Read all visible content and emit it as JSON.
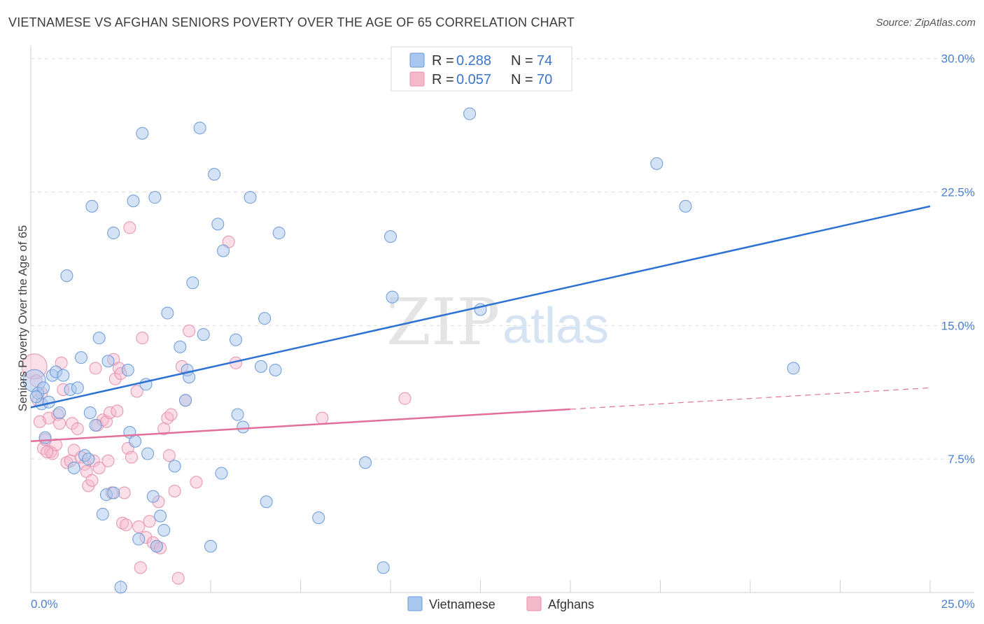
{
  "header": {
    "title": "VIETNAMESE VS AFGHAN SENIORS POVERTY OVER THE AGE OF 65 CORRELATION CHART",
    "source": "Source: ZipAtlas.com"
  },
  "legend": {
    "series": [
      {
        "r_label": "R =",
        "r_value": "0.288",
        "n_label": "N =",
        "n_value": "74"
      },
      {
        "r_label": "R =",
        "r_value": "0.057",
        "n_label": "N =",
        "n_value": "70"
      }
    ]
  },
  "bottom_legend": [
    "Vietnamese",
    "Afghans"
  ],
  "watermark": {
    "zip": "ZIP",
    "atlas": "atlas"
  },
  "colors": {
    "vietnamese_fill": "#a9c6ee",
    "vietnamese_stroke": "#6a9ad8",
    "vietnamese_line": "#2d72d2",
    "afghans_fill": "#f6b8cb",
    "afghans_stroke": "#e591ad",
    "afghans_line": "#e0709a"
  },
  "chart_data": {
    "type": "scatter",
    "title": "VIETNAMESE VS AFGHAN SENIORS POVERTY OVER THE AGE OF 65 CORRELATION CHART",
    "xlabel": "",
    "ylabel": "Seniors Poverty Over the Age of 65",
    "xlim": [
      0,
      25
    ],
    "ylim": [
      0,
      30.5
    ],
    "x_ticks_labeled": [
      "0.0%",
      "25.0%"
    ],
    "y_ticks": [
      7.5,
      15.0,
      22.5,
      30.0
    ],
    "y_tick_labels": [
      "7.5%",
      "15.0%",
      "22.5%",
      "30.0%"
    ],
    "grid": true,
    "series": [
      {
        "name": "Vietnamese",
        "R": 0.288,
        "N": 74,
        "trend": {
          "x": [
            0,
            25
          ],
          "y": [
            10.4,
            21.7
          ],
          "style": "solid"
        },
        "points": [
          [
            0.1,
            11.9
          ],
          [
            0.2,
            11.2
          ],
          [
            0.3,
            10.6
          ],
          [
            0.35,
            11.5
          ],
          [
            0.4,
            8.7
          ],
          [
            0.5,
            10.7
          ],
          [
            0.6,
            12.2
          ],
          [
            0.7,
            12.4
          ],
          [
            0.8,
            10.1
          ],
          [
            0.9,
            12.2
          ],
          [
            1.0,
            17.8
          ],
          [
            1.1,
            11.4
          ],
          [
            1.2,
            7.0
          ],
          [
            1.3,
            11.5
          ],
          [
            1.4,
            13.2
          ],
          [
            1.5,
            7.7
          ],
          [
            1.6,
            7.5
          ],
          [
            1.65,
            10.1
          ],
          [
            1.7,
            21.7
          ],
          [
            1.8,
            9.4
          ],
          [
            1.9,
            14.3
          ],
          [
            2.0,
            4.4
          ],
          [
            2.1,
            5.5
          ],
          [
            2.15,
            13.0
          ],
          [
            2.3,
            5.6
          ],
          [
            2.3,
            20.2
          ],
          [
            2.5,
            0.3
          ],
          [
            2.7,
            12.5
          ],
          [
            2.75,
            9.0
          ],
          [
            2.85,
            22.0
          ],
          [
            2.9,
            8.5
          ],
          [
            3.0,
            3.0
          ],
          [
            3.1,
            25.8
          ],
          [
            3.2,
            11.7
          ],
          [
            3.25,
            7.8
          ],
          [
            3.4,
            5.4
          ],
          [
            3.45,
            22.2
          ],
          [
            3.5,
            2.6
          ],
          [
            3.6,
            4.3
          ],
          [
            3.7,
            3.5
          ],
          [
            3.8,
            15.7
          ],
          [
            4.0,
            7.1
          ],
          [
            4.15,
            13.8
          ],
          [
            4.3,
            10.8
          ],
          [
            4.35,
            12.5
          ],
          [
            4.4,
            12.1
          ],
          [
            4.5,
            17.4
          ],
          [
            4.7,
            26.1
          ],
          [
            4.8,
            14.5
          ],
          [
            5.0,
            2.6
          ],
          [
            5.1,
            23.5
          ],
          [
            5.2,
            20.7
          ],
          [
            5.3,
            6.7
          ],
          [
            5.35,
            19.2
          ],
          [
            5.7,
            14.2
          ],
          [
            5.75,
            10.0
          ],
          [
            5.9,
            9.3
          ],
          [
            6.1,
            22.2
          ],
          [
            6.4,
            12.7
          ],
          [
            6.5,
            15.4
          ],
          [
            6.55,
            5.1
          ],
          [
            6.8,
            12.5
          ],
          [
            6.9,
            20.2
          ],
          [
            8.0,
            4.2
          ],
          [
            9.3,
            7.3
          ],
          [
            9.8,
            1.4
          ],
          [
            10.0,
            20.0
          ],
          [
            10.05,
            16.6
          ],
          [
            12.2,
            26.9
          ],
          [
            12.5,
            15.9
          ],
          [
            17.4,
            24.1
          ],
          [
            18.2,
            21.7
          ],
          [
            21.2,
            12.6
          ],
          [
            0.15,
            11.0
          ]
        ]
      },
      {
        "name": "Afghans",
        "R": 0.057,
        "N": 70,
        "trend": {
          "x": [
            0,
            15
          ],
          "y": [
            8.5,
            10.3
          ],
          "dashed_to": {
            "x": 25,
            "y": 11.5
          },
          "style": "solid-then-dashed"
        },
        "points": [
          [
            0.1,
            12.7
          ],
          [
            0.2,
            10.8
          ],
          [
            0.3,
            11.2
          ],
          [
            0.35,
            8.1
          ],
          [
            0.4,
            8.6
          ],
          [
            0.5,
            9.8
          ],
          [
            0.55,
            7.9
          ],
          [
            0.6,
            7.8
          ],
          [
            0.7,
            8.3
          ],
          [
            0.75,
            10.0
          ],
          [
            0.8,
            9.5
          ],
          [
            0.85,
            12.9
          ],
          [
            0.9,
            11.4
          ],
          [
            1.0,
            7.3
          ],
          [
            1.1,
            7.4
          ],
          [
            1.15,
            9.5
          ],
          [
            1.2,
            8.0
          ],
          [
            1.3,
            9.2
          ],
          [
            1.4,
            7.6
          ],
          [
            1.5,
            7.2
          ],
          [
            1.55,
            6.8
          ],
          [
            1.6,
            6.0
          ],
          [
            1.7,
            6.3
          ],
          [
            1.75,
            7.4
          ],
          [
            1.8,
            12.6
          ],
          [
            1.85,
            9.4
          ],
          [
            1.9,
            7.0
          ],
          [
            2.0,
            9.7
          ],
          [
            2.1,
            9.6
          ],
          [
            2.15,
            7.4
          ],
          [
            2.2,
            10.1
          ],
          [
            2.25,
            5.6
          ],
          [
            2.3,
            13.1
          ],
          [
            2.35,
            12.0
          ],
          [
            2.4,
            10.2
          ],
          [
            2.45,
            12.6
          ],
          [
            2.5,
            12.3
          ],
          [
            2.55,
            3.9
          ],
          [
            2.6,
            5.6
          ],
          [
            2.65,
            3.8
          ],
          [
            2.7,
            8.1
          ],
          [
            2.75,
            20.5
          ],
          [
            2.8,
            7.6
          ],
          [
            2.95,
            11.3
          ],
          [
            3.0,
            3.7
          ],
          [
            3.05,
            1.4
          ],
          [
            3.1,
            14.3
          ],
          [
            3.2,
            3.1
          ],
          [
            3.3,
            4.0
          ],
          [
            3.4,
            2.8
          ],
          [
            3.5,
            2.6
          ],
          [
            3.55,
            5.1
          ],
          [
            3.6,
            2.5
          ],
          [
            3.7,
            9.2
          ],
          [
            3.8,
            9.8
          ],
          [
            3.85,
            7.7
          ],
          [
            3.9,
            10.0
          ],
          [
            4.0,
            5.7
          ],
          [
            4.1,
            0.8
          ],
          [
            4.2,
            12.7
          ],
          [
            4.3,
            10.8
          ],
          [
            4.4,
            14.7
          ],
          [
            4.6,
            6.2
          ],
          [
            5.5,
            19.7
          ],
          [
            5.7,
            12.9
          ],
          [
            8.1,
            9.8
          ],
          [
            10.4,
            10.9
          ],
          [
            0.15,
            11.9
          ],
          [
            0.25,
            9.6
          ],
          [
            0.45,
            7.9
          ]
        ]
      }
    ]
  }
}
